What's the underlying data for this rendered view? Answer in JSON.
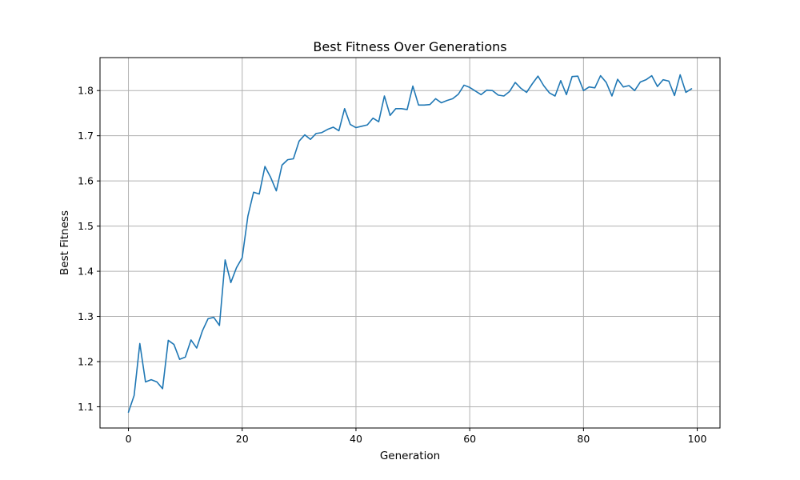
{
  "chart_data": {
    "type": "line",
    "title": "Best Fitness Over Generations",
    "xlabel": "Generation",
    "ylabel": "Best Fitness",
    "xlim": [
      -5,
      104
    ],
    "ylim": [
      1.053,
      1.873
    ],
    "xticks": [
      0,
      20,
      40,
      60,
      80,
      100
    ],
    "xtick_labels": [
      "0",
      "20",
      "40",
      "60",
      "80",
      "100"
    ],
    "yticks": [
      1.1,
      1.2,
      1.3,
      1.4,
      1.5,
      1.6,
      1.7,
      1.8
    ],
    "ytick_labels": [
      "1.1",
      "1.2",
      "1.3",
      "1.4",
      "1.5",
      "1.6",
      "1.7",
      "1.8"
    ],
    "grid": true,
    "colors": {
      "line": "#1f77b4",
      "grid": "#b0b0b0",
      "axis": "#000000"
    },
    "series": [
      {
        "x": [
          0,
          1,
          2,
          3,
          4,
          5,
          6,
          7,
          8,
          9,
          10,
          11,
          12,
          13,
          14,
          15,
          16,
          17,
          18,
          19,
          20,
          21,
          22,
          23,
          24,
          25,
          26,
          27,
          28,
          29,
          30,
          31,
          32,
          33,
          34,
          35,
          36,
          37,
          38,
          39,
          40,
          41,
          42,
          43,
          44,
          45,
          46,
          47,
          48,
          49,
          50,
          51,
          52,
          53,
          54,
          55,
          56,
          57,
          58,
          59,
          60,
          61,
          62,
          63,
          64,
          65,
          66,
          67,
          68,
          69,
          70,
          71,
          72,
          73,
          74,
          75,
          76,
          77,
          78,
          79,
          80,
          81,
          82,
          83,
          84,
          85,
          86,
          87,
          88,
          89,
          90,
          91,
          92,
          93,
          94,
          95,
          96,
          97,
          98,
          99
        ],
        "values": [
          1.088,
          1.125,
          1.24,
          1.155,
          1.16,
          1.155,
          1.14,
          1.247,
          1.238,
          1.205,
          1.21,
          1.248,
          1.23,
          1.268,
          1.295,
          1.298,
          1.28,
          1.425,
          1.375,
          1.408,
          1.43,
          1.522,
          1.575,
          1.571,
          1.632,
          1.608,
          1.578,
          1.635,
          1.647,
          1.649,
          1.688,
          1.702,
          1.692,
          1.705,
          1.707,
          1.714,
          1.719,
          1.711,
          1.76,
          1.725,
          1.718,
          1.721,
          1.724,
          1.739,
          1.731,
          1.788,
          1.745,
          1.76,
          1.76,
          1.758,
          1.81,
          1.768,
          1.768,
          1.769,
          1.782,
          1.773,
          1.778,
          1.782,
          1.792,
          1.812,
          1.807,
          1.799,
          1.791,
          1.801,
          1.8,
          1.79,
          1.788,
          1.798,
          1.818,
          1.805,
          1.796,
          1.815,
          1.832,
          1.811,
          1.795,
          1.788,
          1.822,
          1.791,
          1.831,
          1.832,
          1.8,
          1.808,
          1.806,
          1.833,
          1.818,
          1.788,
          1.825,
          1.808,
          1.811,
          1.8,
          1.819,
          1.824,
          1.833,
          1.809,
          1.824,
          1.821,
          1.789,
          1.835,
          1.796,
          1.804
        ]
      }
    ]
  }
}
